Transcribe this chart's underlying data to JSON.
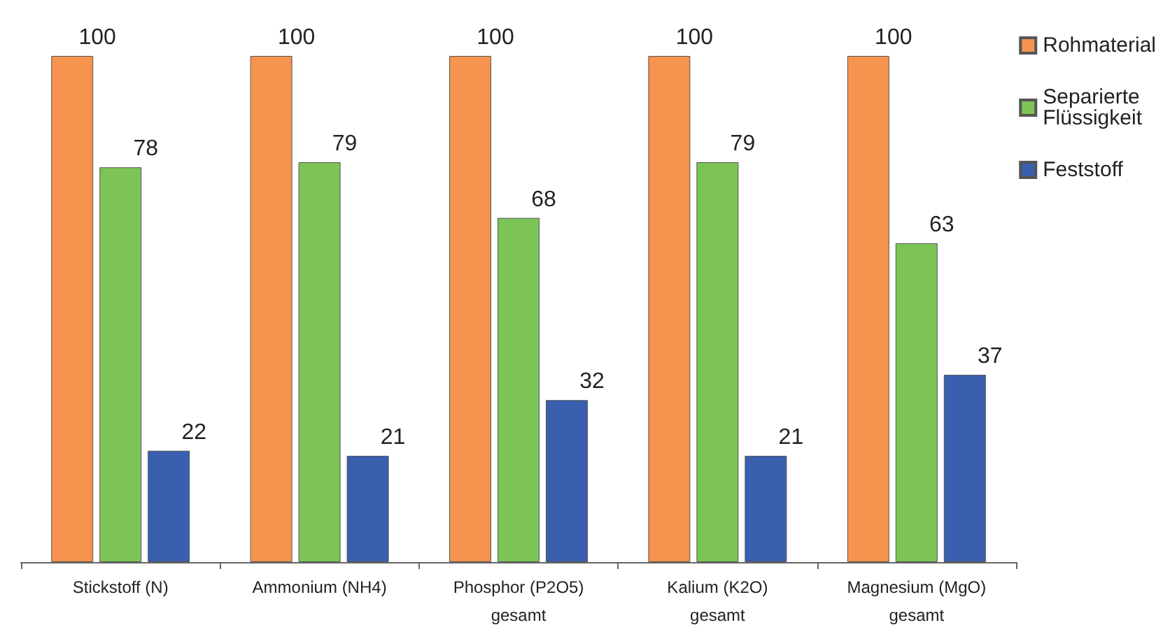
{
  "chart_data": {
    "type": "bar",
    "categories": [
      "Stickstoff (N)",
      "Ammonium (NH4)",
      "Phosphor (P2O5)\ngesamt",
      "Kalium (K2O)\ngesamt",
      "Magnesium (MgO)\ngesamt"
    ],
    "series": [
      {
        "name": "Rohmaterial",
        "color": "#f5934f",
        "values": [
          100,
          100,
          100,
          100,
          100
        ]
      },
      {
        "name": "Separierte Flüssigkeit",
        "color": "#7cc456",
        "values": [
          78,
          79,
          68,
          79,
          63
        ]
      },
      {
        "name": "Feststoff",
        "color": "#3a5fae",
        "values": [
          22,
          21,
          32,
          21,
          37
        ]
      }
    ],
    "data_labels": true,
    "legend": "right"
  }
}
